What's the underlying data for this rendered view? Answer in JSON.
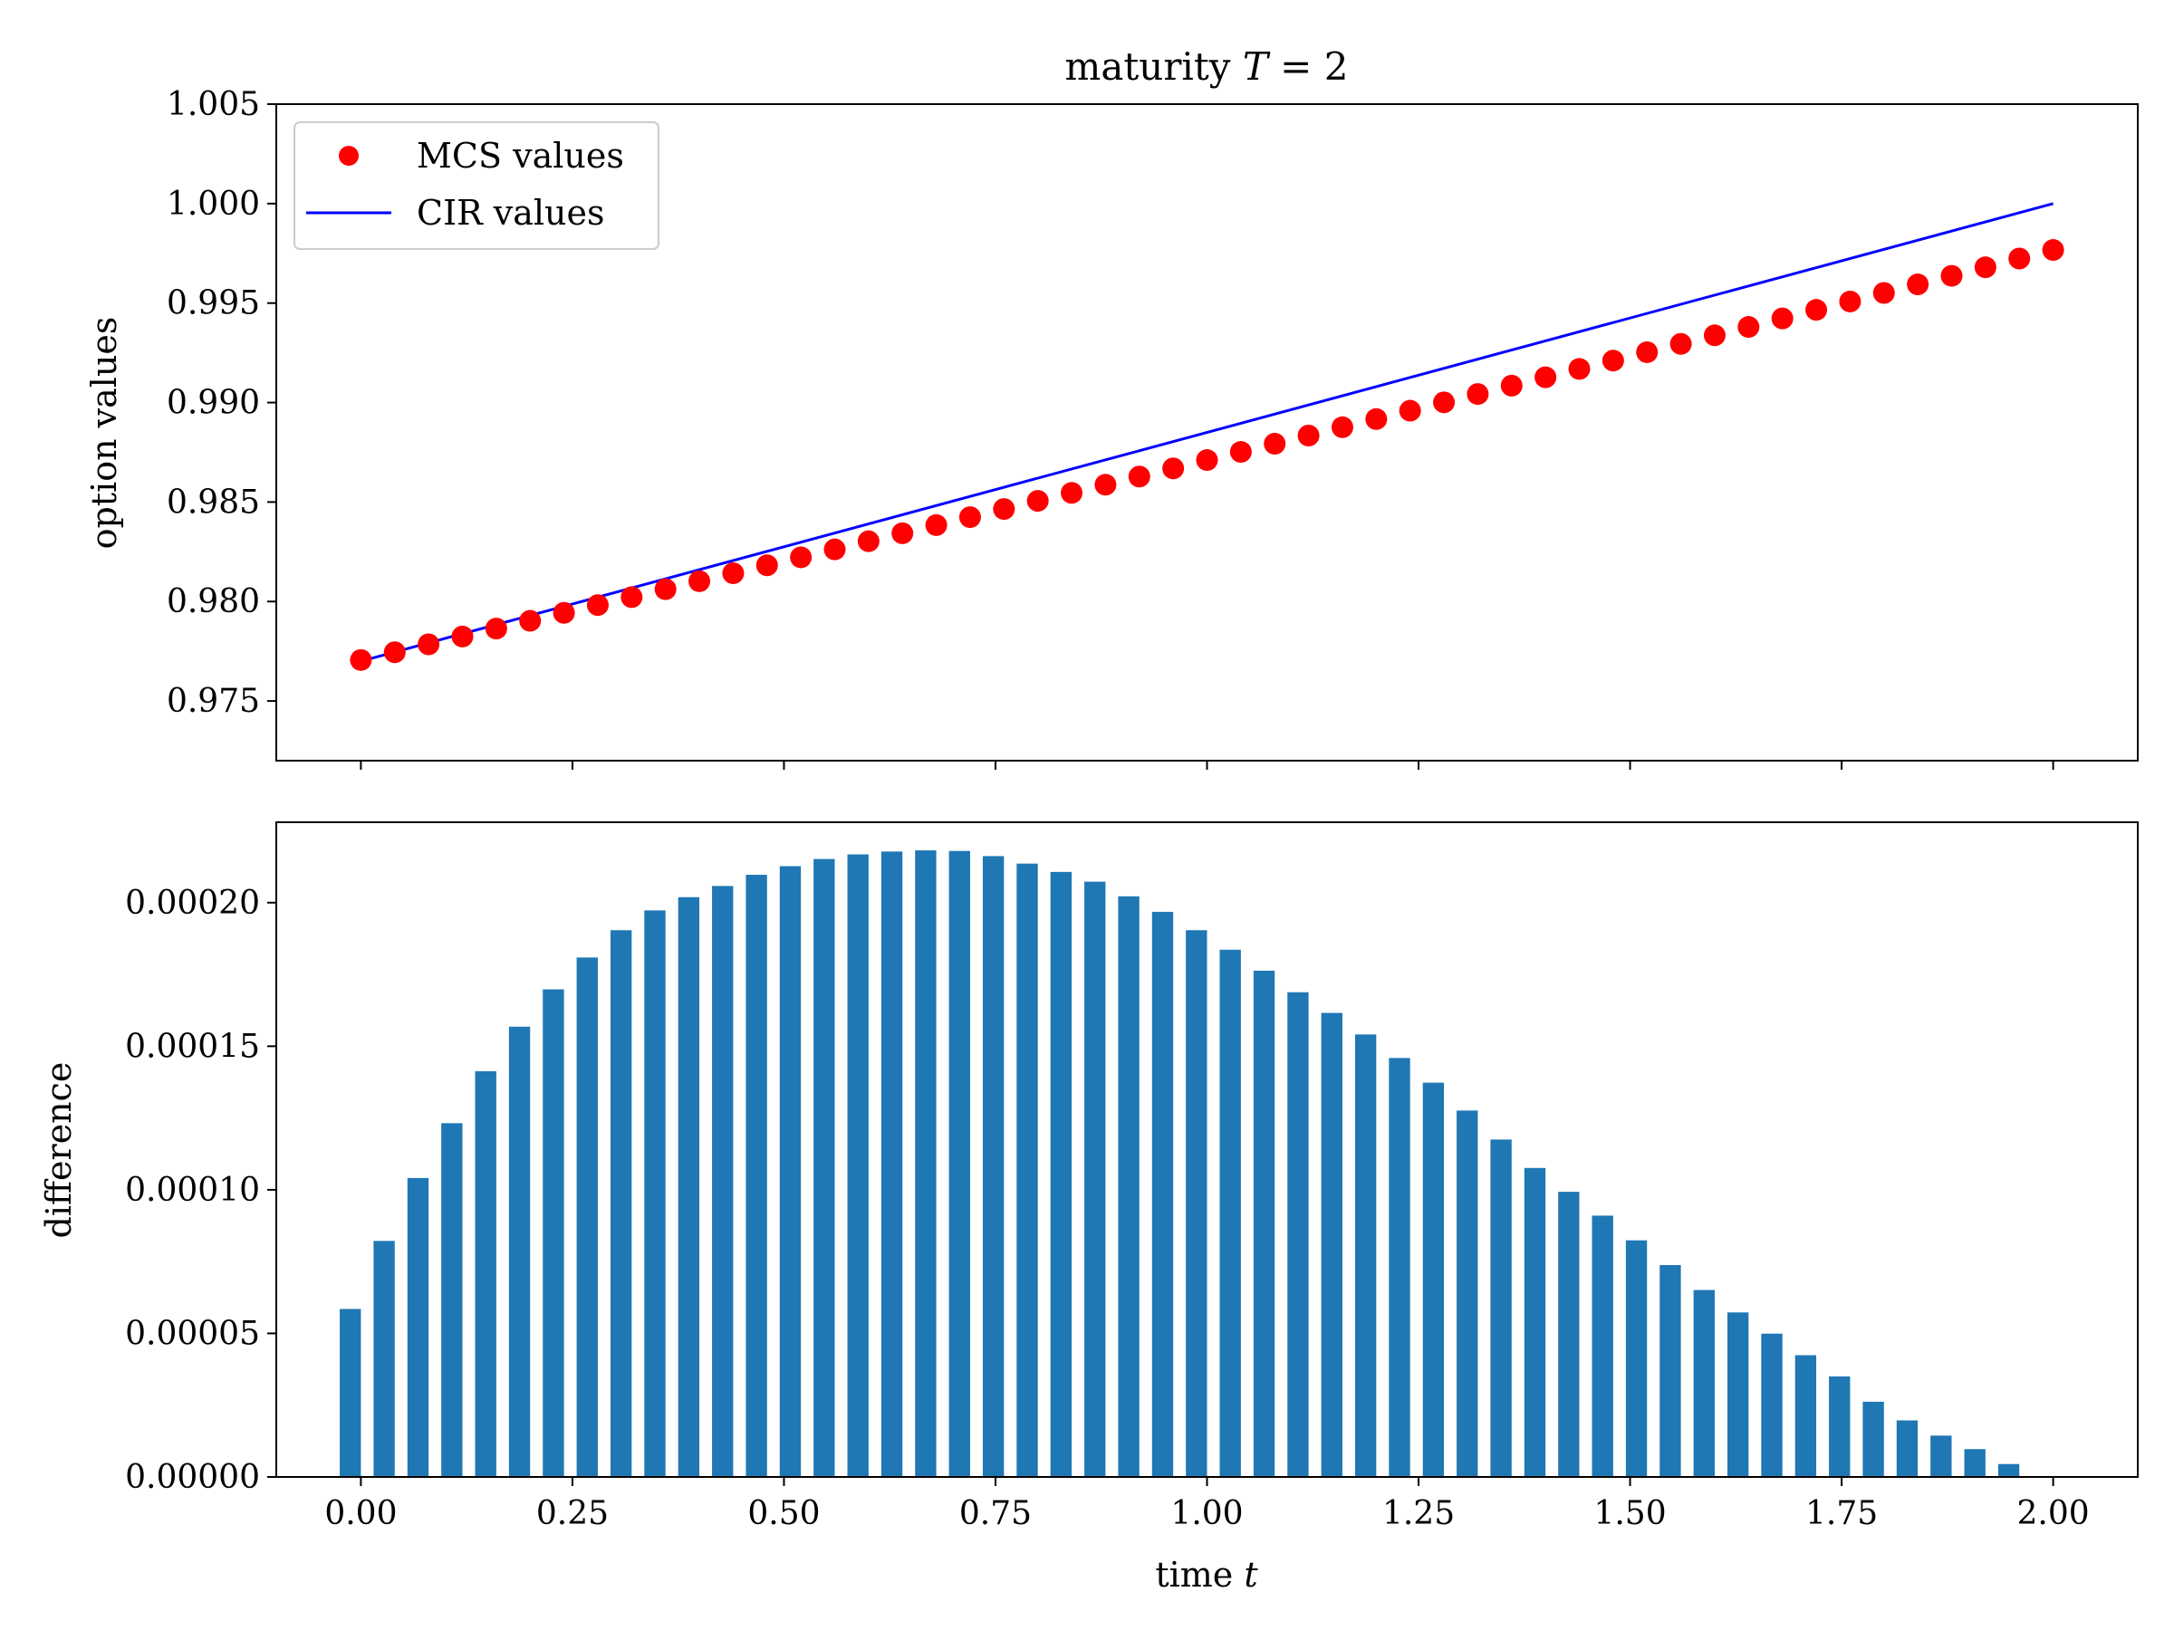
{
  "chart_data": [
    {
      "type": "scatter+line",
      "title": "maturity T = 2",
      "title_prefix": "maturity ",
      "title_math": "T",
      "title_suffix": " = 2",
      "xlabel": "",
      "ylabel": "option values",
      "xlim": [
        -0.1,
        2.1
      ],
      "ylim": [
        0.972,
        1.005
      ],
      "yticks": [
        "0.975",
        "0.980",
        "0.985",
        "0.990",
        "0.995",
        "1.000",
        "1.005"
      ],
      "ytick_values": [
        0.975,
        0.98,
        0.985,
        0.99,
        0.995,
        1.0,
        1.005
      ],
      "xtick_values": [
        0,
        0.25,
        0.5,
        0.75,
        1.0,
        1.25,
        1.5,
        1.75,
        2.0
      ],
      "legend": {
        "placement": "upper-left",
        "entries": [
          {
            "label": "MCS values",
            "marker": "circle",
            "color": "#ff0000"
          },
          {
            "label": "CIR values",
            "marker": "line",
            "color": "#0000ff"
          }
        ]
      },
      "series": [
        {
          "name": "MCS values",
          "style": "markers",
          "color": "#ff0000",
          "x": [
            0.0,
            0.04,
            0.08,
            0.12,
            0.16,
            0.2,
            0.24,
            0.28,
            0.32,
            0.36,
            0.4,
            0.44,
            0.48,
            0.52,
            0.56,
            0.6,
            0.64,
            0.68,
            0.72,
            0.76,
            0.8,
            0.84,
            0.88,
            0.92,
            0.96,
            1.0,
            1.04,
            1.08,
            1.12,
            1.16,
            1.2,
            1.24,
            1.28,
            1.32,
            1.36,
            1.4,
            1.44,
            1.48,
            1.52,
            1.56,
            1.6,
            1.64,
            1.68,
            1.72,
            1.76,
            1.8,
            1.84,
            1.88,
            1.92,
            1.96,
            2.0
          ],
          "y": [
            0.97706,
            0.97745,
            0.97785,
            0.97824,
            0.97864,
            0.97903,
            0.97943,
            0.97982,
            0.98022,
            0.98062,
            0.98102,
            0.98142,
            0.98182,
            0.98222,
            0.98262,
            0.98303,
            0.98343,
            0.98384,
            0.98424,
            0.98465,
            0.98506,
            0.98546,
            0.98587,
            0.98628,
            0.98669,
            0.98711,
            0.98752,
            0.98793,
            0.98834,
            0.98876,
            0.98917,
            0.98959,
            0.99001,
            0.99043,
            0.99085,
            0.99127,
            0.99169,
            0.99211,
            0.99253,
            0.99295,
            0.99338,
            0.9938,
            0.99423,
            0.99466,
            0.99508,
            0.99551,
            0.99594,
            0.99637,
            0.9968,
            0.99724,
            0.99767
          ]
        },
        {
          "name": "CIR values",
          "style": "line",
          "color": "#0000ff",
          "x": [
            0.0,
            2.0
          ],
          "y": [
            0.977,
            1.0
          ]
        }
      ]
    },
    {
      "type": "bar",
      "title": "",
      "xlabel": "time t",
      "xlabel_prefix": "time ",
      "xlabel_math": "t",
      "ylabel": "difference",
      "xlim": [
        -0.1,
        2.1
      ],
      "ylim": [
        0,
        0.000228
      ],
      "bar_color": "#1f77b4",
      "bar_width": 0.025,
      "xticks": [
        "0.00",
        "0.25",
        "0.50",
        "0.75",
        "1.00",
        "1.25",
        "1.50",
        "1.75",
        "2.00"
      ],
      "xtick_values": [
        0,
        0.25,
        0.5,
        0.75,
        1.0,
        1.25,
        1.5,
        1.75,
        2.0
      ],
      "yticks": [
        "0.00000",
        "0.00005",
        "0.00010",
        "0.00015",
        "0.00020"
      ],
      "ytick_values": [
        0,
        5e-05,
        0.0001,
        0.00015,
        0.0002
      ],
      "x": [
        -0.0125,
        0.0275,
        0.0675,
        0.1075,
        0.1475,
        0.1875,
        0.2275,
        0.2675,
        0.3075,
        0.3475,
        0.3875,
        0.4275,
        0.4675,
        0.5075,
        0.5475,
        0.5875,
        0.6275,
        0.6675,
        0.7075,
        0.7475,
        0.7875,
        0.8275,
        0.8675,
        0.9075,
        0.9475,
        0.9875,
        1.0275,
        1.0675,
        1.1075,
        1.1475,
        1.1875,
        1.2275,
        1.2675,
        1.3075,
        1.3475,
        1.3875,
        1.4275,
        1.4675,
        1.5075,
        1.5475,
        1.5875,
        1.6275,
        1.6675,
        1.7075,
        1.7475,
        1.7875,
        1.8275,
        1.8675,
        1.9075,
        1.9475,
        1.9875
      ],
      "values": [
        5.85e-05,
        8.22e-05,
        0.0001041,
        0.0001232,
        0.0001413,
        0.0001568,
        0.0001698,
        0.0001809,
        0.0001904,
        0.0001973,
        0.0002019,
        0.0002058,
        0.0002097,
        0.0002127,
        0.0002152,
        0.0002168,
        0.0002178,
        0.0002182,
        0.000218,
        0.0002162,
        0.0002136,
        0.0002107,
        0.0002073,
        0.0002022,
        0.0001968,
        0.0001904,
        0.0001836,
        0.0001763,
        0.0001688,
        0.0001616,
        0.0001541,
        0.0001459,
        0.0001373,
        0.0001276,
        0.0001175,
        0.0001076,
        9.93e-05,
        9.1e-05,
        8.24e-05,
        7.38e-05,
        6.51e-05,
        5.73e-05,
        4.99e-05,
        4.24e-05,
        3.5e-05,
        2.62e-05,
        1.97e-05,
        1.44e-05,
        9.7e-06,
        4.5e-06,
        0.0
      ]
    }
  ]
}
